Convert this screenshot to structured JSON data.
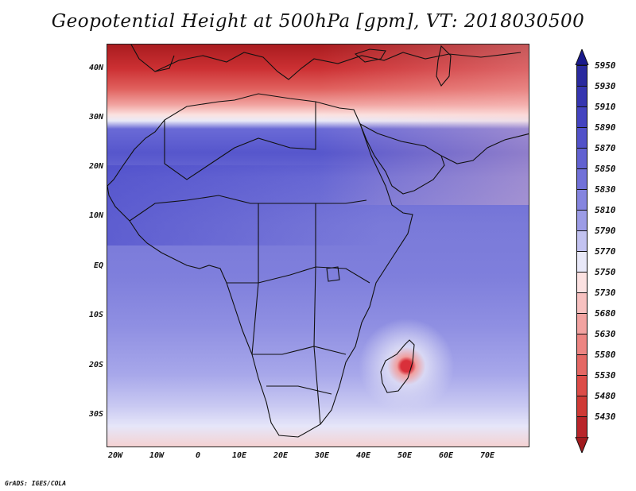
{
  "title": "Geopotential Height at 500hPa [gpm], VT: 2018030500",
  "credit": "GrADS: IGES/COLA",
  "y_ticks": [
    {
      "label": "40N",
      "lat": 40
    },
    {
      "label": "30N",
      "lat": 30
    },
    {
      "label": "20N",
      "lat": 20
    },
    {
      "label": "10N",
      "lat": 10
    },
    {
      "label": "EQ",
      "lat": 0
    },
    {
      "label": "10S",
      "lat": -10
    },
    {
      "label": "20S",
      "lat": -20
    },
    {
      "label": "30S",
      "lat": -30
    }
  ],
  "x_ticks": [
    {
      "label": "20W",
      "lon": -20
    },
    {
      "label": "10W",
      "lon": -10
    },
    {
      "label": "0",
      "lon": 0
    },
    {
      "label": "10E",
      "lon": 10
    },
    {
      "label": "20E",
      "lon": 20
    },
    {
      "label": "30E",
      "lon": 30
    },
    {
      "label": "40E",
      "lon": 40
    },
    {
      "label": "50E",
      "lon": 50
    },
    {
      "label": "60E",
      "lon": 60
    },
    {
      "label": "70E",
      "lon": 70
    }
  ],
  "colorbar": [
    {
      "value": "5950",
      "color": "#2a2a9e"
    },
    {
      "value": "5930",
      "color": "#3636b0"
    },
    {
      "value": "5910",
      "color": "#4444c0"
    },
    {
      "value": "5890",
      "color": "#5252c9"
    },
    {
      "value": "5870",
      "color": "#6262d1"
    },
    {
      "value": "5850",
      "color": "#7171d8"
    },
    {
      "value": "5830",
      "color": "#8585df"
    },
    {
      "value": "5810",
      "color": "#9c9ce6"
    },
    {
      "value": "5790",
      "color": "#c2c2f0"
    },
    {
      "value": "5770",
      "color": "#e8e8f8"
    },
    {
      "value": "5750",
      "color": "#fbe1e1"
    },
    {
      "value": "5730",
      "color": "#f7c1c0"
    },
    {
      "value": "5680",
      "color": "#f2a3a1"
    },
    {
      "value": "5630",
      "color": "#ec8582"
    },
    {
      "value": "5580",
      "color": "#e46864"
    },
    {
      "value": "5530",
      "color": "#dc4c48"
    },
    {
      "value": "5480",
      "color": "#cf3a36"
    },
    {
      "value": "5430",
      "color": "#b9252a"
    }
  ],
  "colorbar_top_color": "#1a1a8c",
  "colorbar_bottom_color": "#a11a1e",
  "map_extent": {
    "lon_min": -22,
    "lon_max": 80,
    "lat_min": -37,
    "lat_max": 45
  }
}
